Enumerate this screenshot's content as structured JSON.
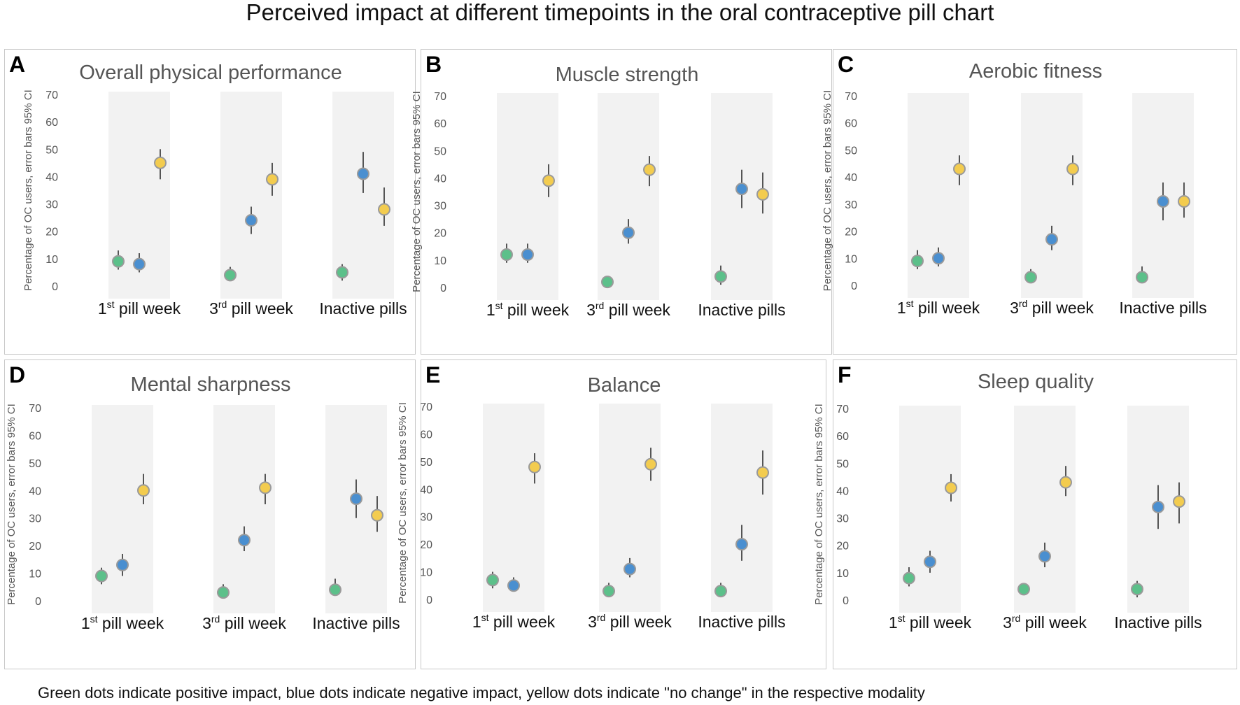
{
  "title": "Perceived impact at different timepoints in the oral contraceptive pill chart",
  "footnote": "Green dots indicate positive impact, blue dots indicate negative impact, yellow dots indicate \"no change\" in the respective modality",
  "colors": {
    "positive": "#5cc08a",
    "negative": "#4a8fd0",
    "no_change": "#f3cc4f",
    "band": "#f2f2f2",
    "errorbar": "#555555"
  },
  "chart_data": [
    {
      "type": "scatter",
      "panel": "A",
      "title": "Overall physical performance",
      "ylabel": "Percentage of OC users, error bars 95% CI",
      "ylim": [
        0,
        70
      ],
      "yticks": [
        "0",
        "10",
        "20",
        "30",
        "40",
        "50",
        "60",
        "70"
      ],
      "categories": [
        {
          "main": "1",
          "sup": "st",
          "rest": " pill week"
        },
        {
          "main": "3",
          "sup": "rd",
          "rest": " pill week"
        },
        {
          "main": "Inactive pills",
          "sup": "",
          "rest": ""
        }
      ],
      "series": [
        {
          "name": "positive impact",
          "values": [
            9,
            4,
            5
          ],
          "ci_low": [
            6,
            2,
            2
          ],
          "ci_high": [
            13,
            7,
            8
          ]
        },
        {
          "name": "negative impact",
          "values": [
            8,
            24,
            41
          ],
          "ci_low": [
            5,
            19,
            34
          ],
          "ci_high": [
            12,
            29,
            49
          ]
        },
        {
          "name": "no change",
          "values": [
            45,
            39,
            28
          ],
          "ci_low": [
            39,
            33,
            22
          ],
          "ci_high": [
            50,
            45,
            36
          ]
        }
      ]
    },
    {
      "type": "scatter",
      "panel": "B",
      "title": "Muscle strength",
      "ylabel": "Percentage of OC users, error bars 95% CI",
      "ylim": [
        0,
        70
      ],
      "yticks": [
        "0",
        "10",
        "20",
        "30",
        "40",
        "50",
        "60",
        "70"
      ],
      "categories": [
        {
          "main": "1",
          "sup": "st",
          "rest": " pill week"
        },
        {
          "main": "3",
          "sup": "rd",
          "rest": " pill week"
        },
        {
          "main": "Inactive pills",
          "sup": "",
          "rest": ""
        }
      ],
      "series": [
        {
          "name": "positive impact",
          "values": [
            12,
            2,
            4
          ],
          "ci_low": [
            9,
            1,
            1
          ],
          "ci_high": [
            16,
            4,
            8
          ]
        },
        {
          "name": "negative impact",
          "values": [
            12,
            20,
            36
          ],
          "ci_low": [
            9,
            16,
            29
          ],
          "ci_high": [
            16,
            25,
            43
          ]
        },
        {
          "name": "no change",
          "values": [
            39,
            43,
            34
          ],
          "ci_low": [
            33,
            37,
            27
          ],
          "ci_high": [
            45,
            48,
            42
          ]
        }
      ]
    },
    {
      "type": "scatter",
      "panel": "C",
      "title": "Aerobic fitness",
      "ylabel": "Percentage of OC users, error bars 95% CI",
      "ylim": [
        0,
        70
      ],
      "yticks": [
        "0",
        "10",
        "20",
        "30",
        "40",
        "50",
        "60",
        "70"
      ],
      "categories": [
        {
          "main": "1",
          "sup": "st",
          "rest": " pill week"
        },
        {
          "main": "3",
          "sup": "rd",
          "rest": " pill week"
        },
        {
          "main": "Inactive pills",
          "sup": "",
          "rest": ""
        }
      ],
      "series": [
        {
          "name": "positive impact",
          "values": [
            9,
            3,
            3
          ],
          "ci_low": [
            6,
            1,
            1
          ],
          "ci_high": [
            13,
            6,
            7
          ]
        },
        {
          "name": "negative impact",
          "values": [
            10,
            17,
            31
          ],
          "ci_low": [
            7,
            13,
            24
          ],
          "ci_high": [
            14,
            22,
            38
          ]
        },
        {
          "name": "no change",
          "values": [
            43,
            43,
            31
          ],
          "ci_low": [
            37,
            37,
            25
          ],
          "ci_high": [
            48,
            48,
            38
          ]
        }
      ]
    },
    {
      "type": "scatter",
      "panel": "D",
      "title": "Mental sharpness",
      "ylabel": "Percentage of OC users, error bars 95% CI",
      "ylim": [
        0,
        70
      ],
      "yticks": [
        "0",
        "10",
        "20",
        "30",
        "40",
        "50",
        "60",
        "70"
      ],
      "categories": [
        {
          "main": "1",
          "sup": "st",
          "rest": " pill week"
        },
        {
          "main": "3",
          "sup": "rd",
          "rest": " pill week"
        },
        {
          "main": "Inactive pills",
          "sup": "",
          "rest": ""
        }
      ],
      "series": [
        {
          "name": "positive impact",
          "values": [
            9,
            3,
            4
          ],
          "ci_low": [
            6,
            1,
            2
          ],
          "ci_high": [
            12,
            6,
            8
          ]
        },
        {
          "name": "negative impact",
          "values": [
            13,
            22,
            37
          ],
          "ci_low": [
            9,
            18,
            30
          ],
          "ci_high": [
            17,
            27,
            44
          ]
        },
        {
          "name": "no change",
          "values": [
            40,
            41,
            31
          ],
          "ci_low": [
            35,
            35,
            25
          ],
          "ci_high": [
            46,
            46,
            38
          ]
        }
      ]
    },
    {
      "type": "scatter",
      "panel": "E",
      "title": "Balance",
      "ylabel": "Percentage of OC users, error bars 95% CI",
      "ylim": [
        0,
        70
      ],
      "yticks": [
        "0",
        "10",
        "20",
        "30",
        "40",
        "50",
        "60",
        "70"
      ],
      "categories": [
        {
          "main": "1",
          "sup": "st",
          "rest": " pill week"
        },
        {
          "main": "3",
          "sup": "rd",
          "rest": " pill week"
        },
        {
          "main": "Inactive pills",
          "sup": "",
          "rest": ""
        }
      ],
      "series": [
        {
          "name": "positive impact",
          "values": [
            7,
            3,
            3
          ],
          "ci_low": [
            4,
            1,
            1
          ],
          "ci_high": [
            10,
            6,
            6
          ]
        },
        {
          "name": "negative impact",
          "values": [
            5,
            11,
            20
          ],
          "ci_low": [
            3,
            8,
            14
          ],
          "ci_high": [
            8,
            15,
            27
          ]
        },
        {
          "name": "no change",
          "values": [
            48,
            49,
            46
          ],
          "ci_low": [
            42,
            43,
            38
          ],
          "ci_high": [
            53,
            55,
            54
          ]
        }
      ]
    },
    {
      "type": "scatter",
      "panel": "F",
      "title": "Sleep quality",
      "ylabel": "Percentage of OC users, error bars 95% CI",
      "ylim": [
        0,
        70
      ],
      "yticks": [
        "0",
        "10",
        "20",
        "30",
        "40",
        "50",
        "60",
        "70"
      ],
      "categories": [
        {
          "main": "1",
          "sup": "st",
          "rest": " pill week"
        },
        {
          "main": "3",
          "sup": "rd",
          "rest": " pill week"
        },
        {
          "main": "Inactive pills",
          "sup": "",
          "rest": ""
        }
      ],
      "series": [
        {
          "name": "positive impact",
          "values": [
            8,
            4,
            4
          ],
          "ci_low": [
            5,
            2,
            1
          ],
          "ci_high": [
            12,
            6,
            7
          ]
        },
        {
          "name": "negative impact",
          "values": [
            14,
            16,
            34
          ],
          "ci_low": [
            10,
            12,
            26
          ],
          "ci_high": [
            18,
            21,
            42
          ]
        },
        {
          "name": "no change",
          "values": [
            41,
            43,
            36
          ],
          "ci_low": [
            36,
            38,
            28
          ],
          "ci_high": [
            46,
            49,
            43
          ]
        }
      ]
    }
  ]
}
